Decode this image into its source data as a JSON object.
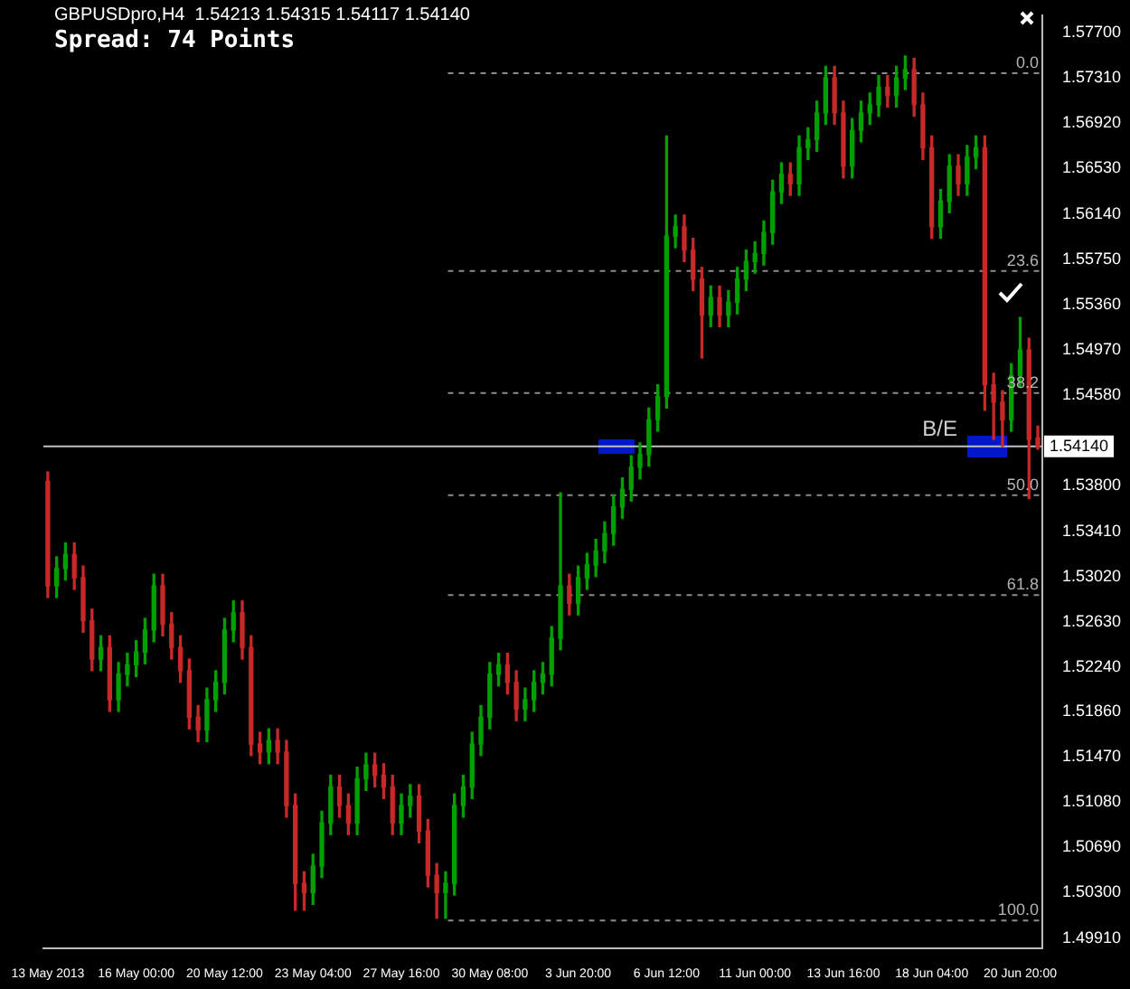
{
  "chart_data": {
    "type": "candlestick",
    "title": "GBPUSDpro,H4  1.54213 1.54315 1.54117 1.54140",
    "subtitle": "Spread: 74 Points",
    "categories": [
      "13 May 2013",
      null,
      null,
      null,
      null,
      null,
      null,
      null,
      null,
      null,
      "16 May 00:00",
      null,
      null,
      null,
      null,
      null,
      null,
      null,
      null,
      null,
      "20 May 12:00",
      null,
      null,
      null,
      null,
      null,
      null,
      null,
      null,
      null,
      "23 May 04:00",
      null,
      null,
      null,
      null,
      null,
      null,
      null,
      null,
      null,
      "27 May 16:00",
      null,
      null,
      null,
      null,
      null,
      null,
      null,
      null,
      null,
      "30 May 08:00",
      null,
      null,
      null,
      null,
      null,
      null,
      null,
      null,
      null,
      "3 Jun 20:00",
      null,
      null,
      null,
      null,
      null,
      null,
      null,
      null,
      null,
      "6 Jun 12:00",
      null,
      null,
      null,
      null,
      null,
      null,
      null,
      null,
      null,
      "11 Jun 00:00",
      null,
      null,
      null,
      null,
      null,
      null,
      null,
      null,
      null,
      "13 Jun 16:00",
      null,
      null,
      null,
      null,
      null,
      null,
      null,
      null,
      null,
      "18 Jun 04:00",
      null,
      null,
      null,
      null,
      null,
      null,
      null,
      null,
      null,
      "20 Jun 20:00",
      null,
      null
    ],
    "ohlc": [
      [
        1.5384,
        1.5392,
        1.5284,
        1.5294
      ],
      [
        1.5294,
        1.5319,
        1.5284,
        1.5309
      ],
      [
        1.5309,
        1.5331,
        1.5299,
        1.5321
      ],
      [
        1.5321,
        1.5331,
        1.5291,
        1.5301
      ],
      [
        1.5301,
        1.5311,
        1.5254,
        1.5264
      ],
      [
        1.5264,
        1.5274,
        1.5221,
        1.5231
      ],
      [
        1.5231,
        1.5251,
        1.5221,
        1.5241
      ],
      [
        1.5241,
        1.5251,
        1.5186,
        1.5196
      ],
      [
        1.5196,
        1.5228,
        1.5186,
        1.5218
      ],
      [
        1.5218,
        1.5236,
        1.5208,
        1.5226
      ],
      [
        1.5226,
        1.5247,
        1.5216,
        1.5237
      ],
      [
        1.5237,
        1.5266,
        1.5227,
        1.5256
      ],
      [
        1.5256,
        1.5304,
        1.5246,
        1.5294
      ],
      [
        1.5294,
        1.5304,
        1.5251,
        1.5261
      ],
      [
        1.5261,
        1.5271,
        1.5231,
        1.5241
      ],
      [
        1.5241,
        1.5251,
        1.5211,
        1.5221
      ],
      [
        1.5221,
        1.5231,
        1.5171,
        1.5181
      ],
      [
        1.5181,
        1.5191,
        1.516,
        1.517
      ],
      [
        1.517,
        1.5206,
        1.516,
        1.5196
      ],
      [
        1.5196,
        1.5221,
        1.5186,
        1.5211
      ],
      [
        1.5211,
        1.5266,
        1.5201,
        1.5256
      ],
      [
        1.5256,
        1.5281,
        1.5246,
        1.5271
      ],
      [
        1.5271,
        1.5281,
        1.5231,
        1.5241
      ],
      [
        1.5241,
        1.5251,
        1.5148,
        1.5158
      ],
      [
        1.5158,
        1.5168,
        1.5141,
        1.5151
      ],
      [
        1.5151,
        1.5171,
        1.5141,
        1.5161
      ],
      [
        1.5161,
        1.5171,
        1.5141,
        1.5151
      ],
      [
        1.5151,
        1.5161,
        1.5095,
        1.5105
      ],
      [
        1.5105,
        1.5115,
        1.5015,
        1.5038
      ],
      [
        1.5038,
        1.5048,
        1.5015,
        1.503
      ],
      [
        1.503,
        1.5063,
        1.502,
        1.5053
      ],
      [
        1.5053,
        1.51,
        1.5043,
        1.509
      ],
      [
        1.509,
        1.5131,
        1.508,
        1.5121
      ],
      [
        1.5121,
        1.5131,
        1.5095,
        1.5105
      ],
      [
        1.5105,
        1.5115,
        1.508,
        1.509
      ],
      [
        1.509,
        1.5138,
        1.508,
        1.5128
      ],
      [
        1.5128,
        1.515,
        1.5118,
        1.514
      ],
      [
        1.514,
        1.515,
        1.5121,
        1.5131
      ],
      [
        1.5131,
        1.5141,
        1.5111,
        1.5121
      ],
      [
        1.5121,
        1.5131,
        1.508,
        1.509
      ],
      [
        1.509,
        1.5115,
        1.508,
        1.5105
      ],
      [
        1.5105,
        1.5123,
        1.5095,
        1.5113
      ],
      [
        1.5113,
        1.5123,
        1.5073,
        1.5083
      ],
      [
        1.5083,
        1.5093,
        1.5035,
        1.5045
      ],
      [
        1.5045,
        1.5055,
        1.5008,
        1.503
      ],
      [
        1.503,
        1.5048,
        1.5008,
        1.5038
      ],
      [
        1.5038,
        1.5115,
        1.5028,
        1.5105
      ],
      [
        1.5105,
        1.5131,
        1.5095,
        1.5121
      ],
      [
        1.5121,
        1.5168,
        1.5111,
        1.5158
      ],
      [
        1.5158,
        1.5191,
        1.5148,
        1.5181
      ],
      [
        1.5181,
        1.5228,
        1.5171,
        1.5218
      ],
      [
        1.5218,
        1.5236,
        1.5208,
        1.5226
      ],
      [
        1.5226,
        1.5236,
        1.5201,
        1.5211
      ],
      [
        1.5211,
        1.5221,
        1.5178,
        1.5188
      ],
      [
        1.5188,
        1.5206,
        1.5178,
        1.5196
      ],
      [
        1.5196,
        1.5221,
        1.5186,
        1.5211
      ],
      [
        1.5211,
        1.5228,
        1.5201,
        1.5218
      ],
      [
        1.5218,
        1.5259,
        1.5208,
        1.5249
      ],
      [
        1.5249,
        1.5374,
        1.5239,
        1.5294
      ],
      [
        1.5294,
        1.5304,
        1.5269,
        1.5279
      ],
      [
        1.5279,
        1.5311,
        1.5269,
        1.5301
      ],
      [
        1.5301,
        1.5322,
        1.5291,
        1.5312
      ],
      [
        1.5312,
        1.5334,
        1.5302,
        1.5324
      ],
      [
        1.5324,
        1.5349,
        1.5314,
        1.5339
      ],
      [
        1.5339,
        1.5372,
        1.5329,
        1.5362
      ],
      [
        1.5362,
        1.5387,
        1.5352,
        1.5377
      ],
      [
        1.5377,
        1.5406,
        1.5367,
        1.5396
      ],
      [
        1.5396,
        1.5417,
        1.5386,
        1.5407
      ],
      [
        1.5407,
        1.5447,
        1.5397,
        1.5437
      ],
      [
        1.5437,
        1.5467,
        1.5427,
        1.5457
      ],
      [
        1.5457,
        1.5681,
        1.5447,
        1.5595
      ],
      [
        1.5595,
        1.5613,
        1.5585,
        1.5603
      ],
      [
        1.5603,
        1.5613,
        1.5573,
        1.5583
      ],
      [
        1.5583,
        1.5593,
        1.5548,
        1.5558
      ],
      [
        1.5558,
        1.5568,
        1.549,
        1.5527
      ],
      [
        1.5527,
        1.5552,
        1.5517,
        1.5542
      ],
      [
        1.5542,
        1.5552,
        1.5517,
        1.5527
      ],
      [
        1.5527,
        1.5548,
        1.5517,
        1.5538
      ],
      [
        1.5538,
        1.5568,
        1.5528,
        1.5558
      ],
      [
        1.5558,
        1.5583,
        1.5548,
        1.5573
      ],
      [
        1.5573,
        1.559,
        1.5563,
        1.558
      ],
      [
        1.558,
        1.5608,
        1.557,
        1.5598
      ],
      [
        1.5598,
        1.5643,
        1.5588,
        1.5633
      ],
      [
        1.5633,
        1.5658,
        1.5623,
        1.5648
      ],
      [
        1.5648,
        1.5658,
        1.563,
        1.564
      ],
      [
        1.564,
        1.5681,
        1.563,
        1.5671
      ],
      [
        1.5671,
        1.5688,
        1.5661,
        1.5678
      ],
      [
        1.5678,
        1.5711,
        1.5668,
        1.5701
      ],
      [
        1.5701,
        1.5741,
        1.5691,
        1.5731
      ],
      [
        1.5731,
        1.5741,
        1.5691,
        1.5701
      ],
      [
        1.5701,
        1.5711,
        1.5645,
        1.5655
      ],
      [
        1.5655,
        1.5696,
        1.5645,
        1.5686
      ],
      [
        1.5686,
        1.5711,
        1.5676,
        1.5701
      ],
      [
        1.5701,
        1.5718,
        1.5691,
        1.5708
      ],
      [
        1.5708,
        1.5733,
        1.5698,
        1.5723
      ],
      [
        1.5723,
        1.5733,
        1.5706,
        1.5716
      ],
      [
        1.5716,
        1.5741,
        1.5706,
        1.5731
      ],
      [
        1.5731,
        1.575,
        1.5721,
        1.5738
      ],
      [
        1.5738,
        1.5748,
        1.5698,
        1.5708
      ],
      [
        1.5708,
        1.5718,
        1.5661,
        1.5671
      ],
      [
        1.5671,
        1.5681,
        1.5593,
        1.5603
      ],
      [
        1.5603,
        1.5635,
        1.5593,
        1.5625
      ],
      [
        1.5625,
        1.5665,
        1.5615,
        1.5655
      ],
      [
        1.5655,
        1.5665,
        1.563,
        1.564
      ],
      [
        1.564,
        1.5673,
        1.563,
        1.5663
      ],
      [
        1.5663,
        1.5681,
        1.5653,
        1.5671
      ],
      [
        1.5671,
        1.5681,
        1.5445,
        1.5467
      ],
      [
        1.5467,
        1.5477,
        1.542,
        1.5452
      ],
      [
        1.5452,
        1.5462,
        1.5414,
        1.5437
      ],
      [
        1.5437,
        1.5485,
        1.5427,
        1.5475
      ],
      [
        1.5475,
        1.5525,
        1.5465,
        1.5497
      ],
      [
        1.5497,
        1.5507,
        1.5369,
        1.542
      ],
      [
        1.54213,
        1.54315,
        1.54117,
        1.5414
      ]
    ],
    "colors": [
      "#c82828",
      "#00a000",
      "#00a000",
      "#c82828",
      "#c82828",
      "#c82828",
      "#00a000",
      "#c82828",
      "#00a000",
      "#00a000",
      "#00a000",
      "#00a000",
      "#00a000",
      "#c82828",
      "#c82828",
      "#c82828",
      "#c82828",
      "#c82828",
      "#00a000",
      "#00a000",
      "#00a000",
      "#00a000",
      "#c82828",
      "#c82828",
      "#c82828",
      "#00a000",
      "#c82828",
      "#c82828",
      "#c82828",
      "#c82828",
      "#00a000",
      "#00a000",
      "#00a000",
      "#c82828",
      "#c82828",
      "#00a000",
      "#00a000",
      "#c82828",
      "#c82828",
      "#c82828",
      "#00a000",
      "#00a000",
      "#c82828",
      "#c82828",
      "#c82828",
      "#00a000",
      "#00a000",
      "#00a000",
      "#00a000",
      "#00a000",
      "#00a000",
      "#00a000",
      "#c82828",
      "#c82828",
      "#00a000",
      "#00a000",
      "#00a000",
      "#00a000",
      "#00a000",
      "#c82828",
      "#00a000",
      "#00a000",
      "#00a000",
      "#00a000",
      "#00a000",
      "#00a000",
      "#00a000",
      "#00a000",
      "#00a000",
      "#00a000",
      "#00a000",
      "#00a000",
      "#c82828",
      "#c82828",
      "#c82828",
      "#00a000",
      "#c82828",
      "#00a000",
      "#00a000",
      "#00a000",
      "#00a000",
      "#00a000",
      "#00a000",
      "#00a000",
      "#c82828",
      "#00a000",
      "#00a000",
      "#00a000",
      "#00a000",
      "#c82828",
      "#c82828",
      "#00a000",
      "#00a000",
      "#00a000",
      "#00a000",
      "#c82828",
      "#00a000",
      "#00a000",
      "#c82828",
      "#c82828",
      "#c82828",
      "#00a000",
      "#00a000",
      "#c82828",
      "#00a000",
      "#00a000",
      "#c82828",
      "#c82828",
      "#c82828",
      "#00a000",
      "#00a000",
      "#c82828",
      "#c82828"
    ],
    "ylim": [
      1.4982,
      1.5785
    ],
    "yticks": [
      {
        "value": 1.577,
        "label": "1.57700"
      },
      {
        "value": 1.5731,
        "label": "1.57310"
      },
      {
        "value": 1.5692,
        "label": "1.56920"
      },
      {
        "value": 1.5653,
        "label": "1.56530"
      },
      {
        "value": 1.5614,
        "label": "1.56140"
      },
      {
        "value": 1.5575,
        "label": "1.55750"
      },
      {
        "value": 1.5536,
        "label": "1.55360"
      },
      {
        "value": 1.5497,
        "label": "1.54970"
      },
      {
        "value": 1.5458,
        "label": "1.54580"
      },
      {
        "value": 1.538,
        "label": "1.53800"
      },
      {
        "value": 1.5341,
        "label": "1.53410"
      },
      {
        "value": 1.5302,
        "label": "1.53020"
      },
      {
        "value": 1.5263,
        "label": "1.52630"
      },
      {
        "value": 1.5224,
        "label": "1.52240"
      },
      {
        "value": 1.5186,
        "label": "1.51860"
      },
      {
        "value": 1.5147,
        "label": "1.51470"
      },
      {
        "value": 1.5108,
        "label": "1.51080"
      },
      {
        "value": 1.5069,
        "label": "1.50690"
      },
      {
        "value": 1.503,
        "label": "1.50300"
      },
      {
        "value": 1.4991,
        "label": "1.49910"
      }
    ],
    "ref_lines": [
      {
        "axis": "y",
        "value": 1.5735,
        "color": "#8c8c8c",
        "line_style": "dashed"
      },
      {
        "axis": "y",
        "value": 1.5565,
        "color": "#8c8c8c",
        "line_style": "dashed"
      },
      {
        "axis": "y",
        "value": 1.546,
        "color": "#8c8c8c",
        "line_style": "dashed"
      },
      {
        "axis": "y",
        "value": 1.5372,
        "color": "#8c8c8c",
        "line_style": "dashed"
      },
      {
        "axis": "y",
        "value": 1.5286,
        "color": "#8c8c8c",
        "line_style": "dashed"
      },
      {
        "axis": "y",
        "value": 1.5006,
        "color": "#8c8c8c",
        "line_style": "dashed"
      },
      {
        "axis": "y",
        "value": 1.5414,
        "label": "1.54140",
        "color": "#c0c0c0",
        "line_style": "solid"
      }
    ],
    "annotations": [
      {
        "text": "0.0",
        "y": 1.5735
      },
      {
        "text": "23.6",
        "y": 1.5565
      },
      {
        "text": "38.2",
        "y": 1.546
      },
      {
        "text": "50.0",
        "y": 1.5372
      },
      {
        "text": "61.8",
        "y": 1.5286
      },
      {
        "text": "100.0",
        "y": 1.5006
      },
      "B/E"
    ]
  }
}
